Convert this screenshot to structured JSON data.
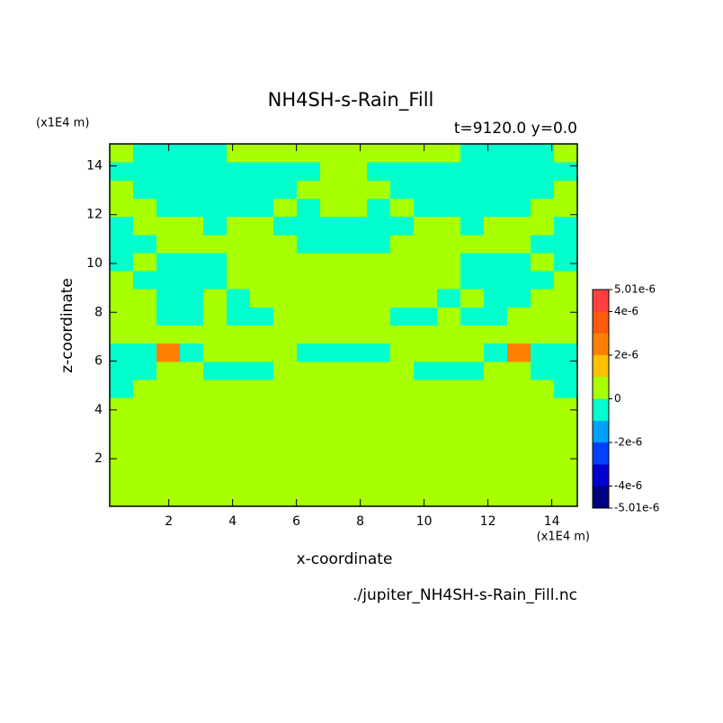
{
  "chart_data": {
    "type": "contour",
    "title": "NH4SH-s-Rain_Fill",
    "subtitle": "t=9120.0 y=0.0",
    "x_label": "x-coordinate",
    "y_label": "z-coordinate",
    "x_unit": "(x1E4 m)",
    "y_unit": "(x1E4 m)",
    "footer": "./jupiter_NH4SH-s-Rain_Fill.nc",
    "xlim": [
      0.15,
      14.8
    ],
    "ylim": [
      0.05,
      14.9
    ],
    "xticks": [
      2,
      4,
      6,
      8,
      10,
      12,
      14
    ],
    "yticks": [
      2,
      4,
      6,
      8,
      10,
      12,
      14
    ],
    "levels": [
      -5.01e-06,
      -4e-06,
      -3e-06,
      -2e-06,
      -1e-06,
      0,
      1e-06,
      2e-06,
      3e-06,
      4e-06,
      5.01e-06
    ],
    "colors": [
      "#000080",
      "#0000d0",
      "#0040ff",
      "#00a0ff",
      "#00ffcc",
      "#a8ff00",
      "#ffc000",
      "#ff8000",
      "#ff5a10",
      "#ff4040"
    ],
    "colorbar_ticks": [
      {
        "value": 5.01e-06,
        "label": "5.01e-6"
      },
      {
        "value": 4e-06,
        "label": "4e-6"
      },
      {
        "value": 2e-06,
        "label": "2e-6"
      },
      0,
      {
        "value": -2e-06,
        "label": "-2e-6"
      },
      {
        "value": -4e-06,
        "label": "-4e-6"
      },
      {
        "value": -5.01e-06,
        "label": "-5.01e-6"
      }
    ],
    "values": [
      [
        0,
        0,
        0,
        0,
        0,
        0,
        0,
        0,
        0,
        0,
        0,
        0,
        0,
        0,
        0,
        0,
        0,
        0,
        0,
        0
      ],
      [
        0,
        0,
        0,
        0,
        0,
        0,
        0,
        0,
        0,
        0,
        0,
        0,
        0,
        0,
        0,
        0,
        0,
        0,
        0,
        0
      ],
      [
        0,
        0,
        0,
        0,
        0,
        0,
        0,
        0,
        0,
        0,
        0,
        0,
        0,
        0,
        0,
        0,
        0,
        0,
        0,
        0
      ],
      [
        0,
        0,
        0,
        0,
        0,
        0,
        0,
        0,
        0,
        0,
        0,
        0,
        0,
        0,
        0,
        0,
        0,
        0,
        0,
        0
      ],
      [
        0,
        0,
        0,
        0,
        0,
        0,
        0,
        0,
        0,
        0,
        0,
        0,
        0,
        0,
        0,
        0,
        0,
        0,
        0,
        0
      ],
      [
        0,
        0,
        0,
        0,
        0,
        0,
        0,
        0,
        0,
        0,
        0,
        0,
        0,
        0,
        0,
        0,
        0,
        0,
        0,
        0
      ],
      [
        -5e-07,
        0,
        0,
        0,
        0,
        0,
        0,
        0,
        0,
        0,
        0,
        0,
        0,
        0,
        0,
        0,
        0,
        0,
        0,
        -5e-07
      ],
      [
        -5e-07,
        -5e-07,
        0,
        0,
        -5e-07,
        -5e-07,
        -5e-07,
        0,
        0,
        0,
        0,
        0,
        0,
        -5e-07,
        -5e-07,
        -5e-07,
        0,
        0,
        -5e-07,
        -5e-07
      ],
      [
        -5e-07,
        -5e-07,
        2.5e-06,
        -5e-07,
        0,
        0,
        0,
        0,
        -5e-07,
        -5e-07,
        -5e-07,
        -5e-07,
        0,
        0,
        0,
        0,
        -5e-07,
        2.5e-06,
        -5e-07,
        -5e-07
      ],
      [
        0,
        0,
        0,
        0,
        0,
        0,
        0,
        0,
        0,
        0,
        0,
        0,
        0,
        0,
        0,
        0,
        0,
        0,
        0,
        0
      ],
      [
        0,
        0,
        -5e-07,
        -5e-07,
        0,
        -5e-07,
        -5e-07,
        0,
        0,
        0,
        0,
        0,
        -5e-07,
        -5e-07,
        0,
        -5e-07,
        -5e-07,
        0,
        0,
        0
      ],
      [
        0,
        0,
        -5e-07,
        -5e-07,
        0,
        -5e-07,
        0,
        0,
        0,
        0,
        0,
        0,
        0,
        0,
        -5e-07,
        0,
        -5e-07,
        -5e-07,
        0,
        0
      ],
      [
        0,
        -5e-07,
        -5e-07,
        -5e-07,
        -5e-07,
        0,
        0,
        0,
        0,
        0,
        0,
        0,
        0,
        0,
        0,
        -5e-07,
        -5e-07,
        -5e-07,
        -5e-07,
        0
      ],
      [
        -5e-07,
        0,
        -5e-07,
        -5e-07,
        -5e-07,
        0,
        0,
        0,
        0,
        0,
        0,
        0,
        0,
        0,
        0,
        -5e-07,
        -5e-07,
        -5e-07,
        0,
        -5e-07
      ],
      [
        -5e-07,
        -5e-07,
        0,
        0,
        0,
        0,
        0,
        0,
        -5e-07,
        -5e-07,
        -5e-07,
        -5e-07,
        0,
        0,
        0,
        0,
        0,
        0,
        -5e-07,
        -5e-07
      ],
      [
        -5e-07,
        0,
        0,
        0,
        -5e-07,
        0,
        0,
        -5e-07,
        -5e-07,
        -5e-07,
        -5e-07,
        -5e-07,
        -5e-07,
        0,
        0,
        -5e-07,
        0,
        0,
        0,
        -5e-07
      ],
      [
        0,
        0,
        -5e-07,
        -5e-07,
        -5e-07,
        -5e-07,
        -5e-07,
        0,
        -5e-07,
        0,
        0,
        -5e-07,
        0,
        -5e-07,
        -5e-07,
        -5e-07,
        -5e-07,
        -5e-07,
        0,
        0
      ],
      [
        0,
        -5e-07,
        -5e-07,
        -5e-07,
        -5e-07,
        -5e-07,
        -5e-07,
        -5e-07,
        0,
        0,
        0,
        0,
        -5e-07,
        -5e-07,
        -5e-07,
        -5e-07,
        -5e-07,
        -5e-07,
        -5e-07,
        0
      ],
      [
        -5e-07,
        -5e-07,
        -5e-07,
        -5e-07,
        -5e-07,
        -5e-07,
        -5e-07,
        -5e-07,
        -5e-07,
        0,
        0,
        -5e-07,
        -5e-07,
        -5e-07,
        -5e-07,
        -5e-07,
        -5e-07,
        -5e-07,
        -5e-07,
        -5e-07
      ],
      [
        0,
        -5e-07,
        -5e-07,
        -5e-07,
        -5e-07,
        0,
        0,
        0,
        0,
        0,
        0,
        0,
        0,
        0,
        0,
        -5e-07,
        -5e-07,
        -5e-07,
        -5e-07,
        0
      ]
    ]
  }
}
